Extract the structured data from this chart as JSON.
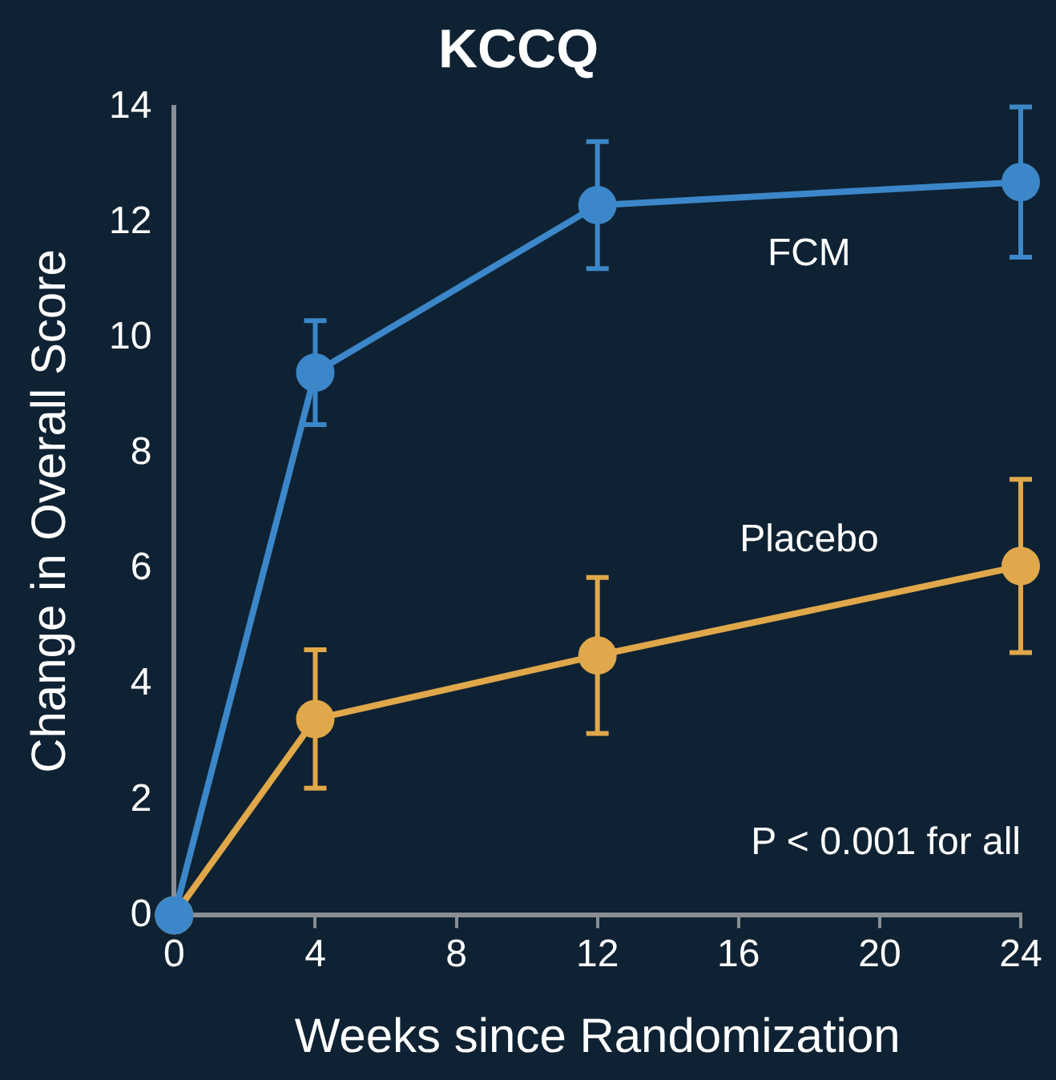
{
  "chart_data": {
    "type": "line",
    "title": "KCCQ",
    "xlabel": "Weeks since Randomization",
    "ylabel": "Change in Overall Score",
    "x": [
      0,
      4,
      12,
      24
    ],
    "series": [
      {
        "name": "FCM",
        "color": "#3b87c9",
        "values": [
          0,
          9.4,
          12.3,
          12.7
        ],
        "errors": [
          null,
          0.9,
          1.1,
          1.3
        ]
      },
      {
        "name": "Placebo",
        "color": "#e0a84a",
        "values": [
          0,
          3.4,
          4.5,
          6.05
        ],
        "errors": [
          null,
          1.2,
          1.35,
          1.5
        ]
      }
    ],
    "xlim": [
      0,
      24
    ],
    "xticks": [
      0,
      4,
      8,
      12,
      16,
      20,
      24
    ],
    "ylim": [
      0,
      14
    ],
    "yticks": [
      0,
      2,
      4,
      6,
      8,
      10,
      12,
      14
    ],
    "annotations": [
      "P < 0.001 for all"
    ],
    "marker": "circle",
    "line_style": "solid",
    "grid": false,
    "legend": false
  }
}
